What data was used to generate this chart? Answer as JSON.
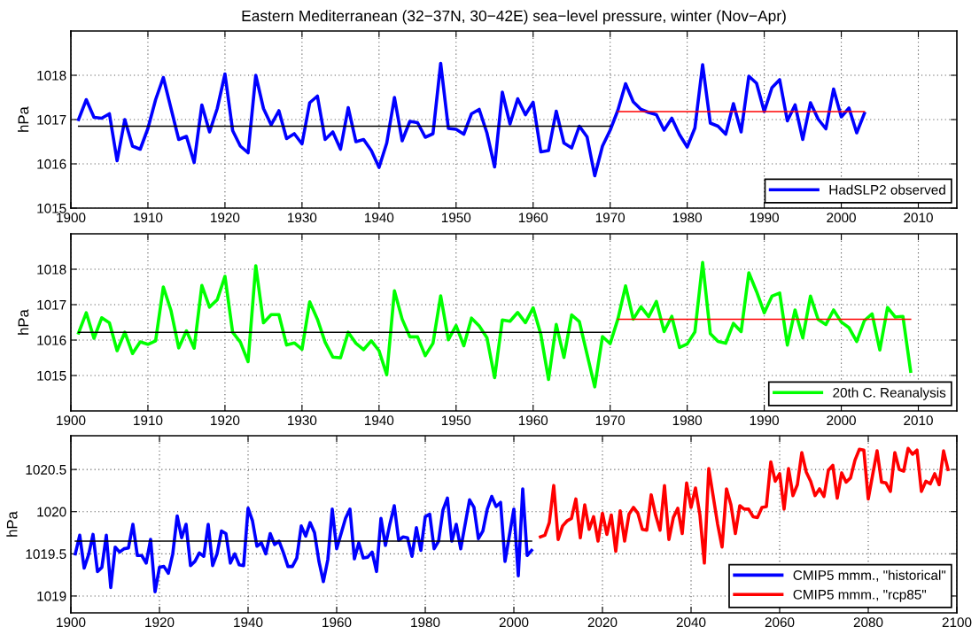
{
  "chart_data": [
    {
      "type": "line",
      "title": "Eastern Mediterranean (32−37N, 30−42E) sea−level pressure, winter (Nov−Apr)",
      "ylabel": "hPa",
      "xlim": [
        1900,
        2015
      ],
      "xticks": [
        1900,
        1910,
        1920,
        1930,
        1940,
        1950,
        1960,
        1970,
        1980,
        1990,
        2000,
        2010
      ],
      "ylim": [
        1015,
        1019
      ],
      "yticks": [
        1015,
        1016,
        1017,
        1018
      ],
      "grid": true,
      "legend": "bottom right",
      "line_style": "solid",
      "series": [
        {
          "name": "HadSLP2 observed",
          "color": "#0000ff",
          "x": [
            1901,
            1902,
            1903,
            1904,
            1905,
            1906,
            1907,
            1908,
            1909,
            1910,
            1911,
            1912,
            1913,
            1914,
            1915,
            1916,
            1917,
            1918,
            1919,
            1920,
            1921,
            1922,
            1923,
            1924,
            1925,
            1926,
            1927,
            1928,
            1929,
            1930,
            1931,
            1932,
            1933,
            1934,
            1935,
            1936,
            1937,
            1938,
            1939,
            1940,
            1941,
            1942,
            1943,
            1944,
            1945,
            1946,
            1947,
            1948,
            1949,
            1950,
            1951,
            1952,
            1953,
            1954,
            1955,
            1956,
            1957,
            1958,
            1959,
            1960,
            1961,
            1962,
            1963,
            1964,
            1965,
            1966,
            1967,
            1968,
            1969,
            1970,
            1971,
            1972,
            1973,
            1974,
            1975,
            1976,
            1977,
            1978,
            1979,
            1980,
            1981,
            1982,
            1983,
            1984,
            1985,
            1986,
            1987,
            1988,
            1989,
            1990,
            1991,
            1992,
            1993,
            1994,
            1995,
            1996,
            1997,
            1998,
            1999,
            2000,
            2001,
            2002,
            2003
          ],
          "values": [
            1017.0,
            1017.45,
            1017.05,
            1017.03,
            1017.13,
            1016.07,
            1017.0,
            1016.4,
            1016.33,
            1016.8,
            1017.45,
            1017.95,
            1017.25,
            1016.55,
            1016.62,
            1016.03,
            1017.33,
            1016.72,
            1017.25,
            1018.03,
            1016.75,
            1016.4,
            1016.25,
            1018.0,
            1017.25,
            1016.88,
            1017.2,
            1016.57,
            1016.68,
            1016.45,
            1017.38,
            1017.53,
            1016.55,
            1016.72,
            1016.33,
            1017.27,
            1016.5,
            1016.55,
            1016.3,
            1015.92,
            1016.47,
            1017.5,
            1016.52,
            1016.96,
            1016.93,
            1016.6,
            1016.68,
            1018.27,
            1016.8,
            1016.78,
            1016.67,
            1017.13,
            1017.23,
            1016.7,
            1015.93,
            1017.62,
            1016.9,
            1017.47,
            1017.11,
            1017.39,
            1016.27,
            1016.3,
            1017.19,
            1016.47,
            1016.36,
            1016.85,
            1016.61,
            1015.73,
            1016.4,
            1016.76,
            1017.21,
            1017.81,
            1017.4,
            1017.23,
            1017.16,
            1017.11,
            1016.76,
            1017.03,
            1016.66,
            1016.38,
            1016.81,
            1018.24,
            1016.92,
            1016.85,
            1016.67,
            1017.36,
            1016.72,
            1017.98,
            1017.82,
            1017.18,
            1017.72,
            1017.9,
            1016.97,
            1017.33,
            1016.55,
            1017.38,
            1017.01,
            1016.79,
            1017.69,
            1017.06,
            1017.26,
            1016.7,
            1017.14
          ]
        },
        {
          "color": "#000000",
          "x": [
            1901,
            1970
          ],
          "values": [
            1016.85,
            1016.85
          ]
        },
        {
          "color": "#ff0000",
          "x": [
            1971,
            2003
          ],
          "values": [
            1017.18,
            1017.18
          ]
        }
      ]
    },
    {
      "type": "line",
      "ylabel": "hPa",
      "xlim": [
        1900,
        2015
      ],
      "xticks": [
        1900,
        1910,
        1920,
        1930,
        1940,
        1950,
        1960,
        1970,
        1980,
        1990,
        2000,
        2010
      ],
      "ylim": [
        1014,
        1019
      ],
      "yticks": [
        1015,
        1016,
        1017,
        1018
      ],
      "grid": true,
      "legend": "bottom right",
      "line_style": "solid",
      "series": [
        {
          "name": "20th C. Reanalysis",
          "color": "#00ff00",
          "x": [
            1901,
            1902,
            1903,
            1904,
            1905,
            1906,
            1907,
            1908,
            1909,
            1910,
            1911,
            1912,
            1913,
            1914,
            1915,
            1916,
            1917,
            1918,
            1919,
            1920,
            1921,
            1922,
            1923,
            1924,
            1925,
            1926,
            1927,
            1928,
            1929,
            1930,
            1931,
            1932,
            1933,
            1934,
            1935,
            1936,
            1937,
            1938,
            1939,
            1940,
            1941,
            1942,
            1943,
            1944,
            1945,
            1946,
            1947,
            1948,
            1949,
            1950,
            1951,
            1952,
            1953,
            1954,
            1955,
            1956,
            1957,
            1958,
            1959,
            1960,
            1961,
            1962,
            1963,
            1964,
            1965,
            1966,
            1967,
            1968,
            1969,
            1970,
            1971,
            1972,
            1973,
            1974,
            1975,
            1976,
            1977,
            1978,
            1979,
            1980,
            1981,
            1982,
            1983,
            1984,
            1985,
            1986,
            1987,
            1988,
            1989,
            1990,
            1991,
            1992,
            1993,
            1994,
            1995,
            1996,
            1997,
            1998,
            1999,
            2000,
            2001,
            2002,
            2003,
            2004,
            2005,
            2006,
            2007,
            2008,
            2009
          ],
          "values": [
            1016.2,
            1016.77,
            1016.05,
            1016.63,
            1016.49,
            1015.7,
            1016.22,
            1015.62,
            1015.95,
            1015.88,
            1015.98,
            1017.5,
            1016.83,
            1015.78,
            1016.26,
            1015.77,
            1017.54,
            1016.93,
            1017.14,
            1017.8,
            1016.22,
            1015.94,
            1015.39,
            1018.1,
            1016.49,
            1016.72,
            1016.72,
            1015.86,
            1015.92,
            1015.74,
            1017.08,
            1016.59,
            1015.94,
            1015.52,
            1015.5,
            1016.22,
            1015.91,
            1015.73,
            1015.98,
            1015.7,
            1015.02,
            1017.39,
            1016.59,
            1016.09,
            1016.09,
            1015.56,
            1015.91,
            1017.25,
            1016.01,
            1016.41,
            1015.84,
            1016.62,
            1016.4,
            1016.07,
            1014.94,
            1016.57,
            1016.53,
            1016.78,
            1016.49,
            1016.91,
            1016.16,
            1014.89,
            1016.44,
            1015.51,
            1016.71,
            1016.52,
            1015.6,
            1014.68,
            1016.1,
            1015.9,
            1016.59,
            1017.53,
            1016.59,
            1016.94,
            1016.66,
            1017.09,
            1016.24,
            1016.67,
            1015.79,
            1015.89,
            1016.23,
            1018.19,
            1016.18,
            1015.96,
            1015.91,
            1016.47,
            1016.24,
            1017.9,
            1017.37,
            1016.77,
            1017.24,
            1017.33,
            1015.86,
            1016.85,
            1016.06,
            1017.24,
            1016.58,
            1016.44,
            1016.85,
            1016.51,
            1016.35,
            1015.96,
            1016.55,
            1016.74,
            1015.72,
            1016.92,
            1016.65,
            1016.67,
            1015.12
          ]
        },
        {
          "color": "#000000",
          "x": [
            1901,
            1970
          ],
          "values": [
            1016.22,
            1016.22
          ]
        },
        {
          "color": "#ff0000",
          "x": [
            1971,
            2009
          ],
          "values": [
            1016.59,
            1016.59
          ]
        }
      ]
    },
    {
      "type": "line",
      "ylabel": "hPa",
      "xlim": [
        1900,
        2100
      ],
      "xticks": [
        1900,
        1920,
        1940,
        1960,
        1980,
        2000,
        2020,
        2040,
        2060,
        2080,
        2100
      ],
      "ylim": [
        1018.8,
        1020.9
      ],
      "yticks": [
        1019,
        1019.5,
        1020,
        1020.5
      ],
      "grid": true,
      "legend": "bottom right",
      "line_style": "solid",
      "series": [
        {
          "name": "CMIP5 mmm., \"historical\"",
          "color": "#0000ff",
          "x": [
            1901,
            1902,
            1903,
            1904,
            1905,
            1906,
            1907,
            1908,
            1909,
            1910,
            1911,
            1912,
            1913,
            1914,
            1915,
            1916,
            1917,
            1918,
            1919,
            1920,
            1921,
            1922,
            1923,
            1924,
            1925,
            1926,
            1927,
            1928,
            1929,
            1930,
            1931,
            1932,
            1933,
            1934,
            1935,
            1936,
            1937,
            1938,
            1939,
            1940,
            1941,
            1942,
            1943,
            1944,
            1945,
            1946,
            1947,
            1948,
            1949,
            1950,
            1951,
            1952,
            1953,
            1954,
            1955,
            1956,
            1957,
            1958,
            1959,
            1960,
            1961,
            1962,
            1963,
            1964,
            1965,
            1966,
            1967,
            1968,
            1969,
            1970,
            1971,
            1972,
            1973,
            1974,
            1975,
            1976,
            1977,
            1978,
            1979,
            1980,
            1981,
            1982,
            1983,
            1984,
            1985,
            1986,
            1987,
            1988,
            1989,
            1990,
            1991,
            1992,
            1993,
            1994,
            1995,
            1996,
            1997,
            1998,
            1999,
            2000,
            2001,
            2002,
            2003,
            2004
          ],
          "values": [
            1019.5,
            1019.72,
            1019.33,
            1019.49,
            1019.73,
            1019.29,
            1019.34,
            1019.72,
            1019.1,
            1019.58,
            1019.52,
            1019.56,
            1019.57,
            1019.85,
            1019.48,
            1019.48,
            1019.39,
            1019.67,
            1019.05,
            1019.34,
            1019.35,
            1019.27,
            1019.5,
            1019.95,
            1019.69,
            1019.85,
            1019.36,
            1019.41,
            1019.51,
            1019.47,
            1019.85,
            1019.36,
            1019.5,
            1019.77,
            1019.74,
            1019.39,
            1019.5,
            1019.37,
            1019.36,
            1020.04,
            1019.89,
            1019.59,
            1019.63,
            1019.5,
            1019.74,
            1019.61,
            1019.65,
            1019.51,
            1019.35,
            1019.35,
            1019.45,
            1019.83,
            1019.71,
            1019.87,
            1019.75,
            1019.41,
            1019.17,
            1019.43,
            1020.03,
            1019.56,
            1019.74,
            1019.92,
            1020.03,
            1019.44,
            1019.63,
            1019.45,
            1019.46,
            1019.52,
            1019.29,
            1019.92,
            1019.6,
            1019.85,
            1020.07,
            1019.66,
            1019.7,
            1019.69,
            1019.47,
            1019.81,
            1019.54,
            1019.94,
            1019.97,
            1019.56,
            1019.65,
            1020.02,
            1020.16,
            1019.65,
            1019.85,
            1019.56,
            1019.85,
            1020.14,
            1020.05,
            1019.68,
            1019.77,
            1020.03,
            1020.18,
            1020.06,
            1020.11,
            1019.41,
            1019.72,
            1020.03,
            1019.24,
            1020.27,
            1019.48,
            1019.54
          ]
        },
        {
          "name": "CMIP5 mmm., \"rcp85\"",
          "color": "#ff0000",
          "x": [
            2006,
            2007,
            2008,
            2009,
            2010,
            2011,
            2012,
            2013,
            2014,
            2015,
            2016,
            2017,
            2018,
            2019,
            2020,
            2021,
            2022,
            2023,
            2024,
            2025,
            2026,
            2027,
            2028,
            2029,
            2030,
            2031,
            2032,
            2033,
            2034,
            2035,
            2036,
            2037,
            2038,
            2039,
            2040,
            2041,
            2042,
            2043,
            2044,
            2045,
            2046,
            2047,
            2048,
            2049,
            2050,
            2051,
            2052,
            2053,
            2054,
            2055,
            2056,
            2057,
            2058,
            2059,
            2060,
            2061,
            2062,
            2063,
            2064,
            2065,
            2066,
            2067,
            2068,
            2069,
            2070,
            2071,
            2072,
            2073,
            2074,
            2075,
            2076,
            2077,
            2078,
            2079,
            2080,
            2081,
            2082,
            2083,
            2084,
            2085,
            2086,
            2087,
            2088,
            2089,
            2090,
            2091,
            2092,
            2093,
            2094,
            2095,
            2096,
            2097,
            2098
          ],
          "values": [
            1019.7,
            1019.72,
            1019.87,
            1020.31,
            1019.67,
            1019.83,
            1019.89,
            1019.92,
            1020.15,
            1019.69,
            1020.08,
            1019.79,
            1019.94,
            1019.65,
            1019.98,
            1019.73,
            1019.96,
            1019.53,
            1020.01,
            1019.65,
            1019.97,
            1020.05,
            1019.98,
            1019.79,
            1019.78,
            1020.2,
            1019.96,
            1019.78,
            1020.31,
            1019.67,
            1019.93,
            1020.04,
            1019.74,
            1020.34,
            1020.05,
            1020.28,
            1019.96,
            1019.39,
            1020.51,
            1020.18,
            1019.85,
            1019.58,
            1020.27,
            1020.08,
            1019.74,
            1020.07,
            1020.03,
            1020.03,
            1019.94,
            1019.93,
            1020.05,
            1020.06,
            1020.59,
            1020.36,
            1020.45,
            1020.03,
            1020.51,
            1020.19,
            1020.32,
            1020.7,
            1020.47,
            1020.36,
            1020.19,
            1020.27,
            1020.18,
            1020.49,
            1020.55,
            1020.16,
            1020.46,
            1020.35,
            1020.4,
            1020.61,
            1020.74,
            1020.73,
            1020.15,
            1020.44,
            1020.72,
            1020.35,
            1020.34,
            1020.24,
            1020.7,
            1020.5,
            1020.48,
            1020.75,
            1020.68,
            1020.73,
            1020.24,
            1020.36,
            1020.33,
            1020.45,
            1020.32,
            1020.72,
            1020.5
          ]
        },
        {
          "color": "#000000",
          "x": [
            1901,
            2004
          ],
          "values": [
            1019.65,
            1019.65
          ]
        }
      ]
    }
  ]
}
